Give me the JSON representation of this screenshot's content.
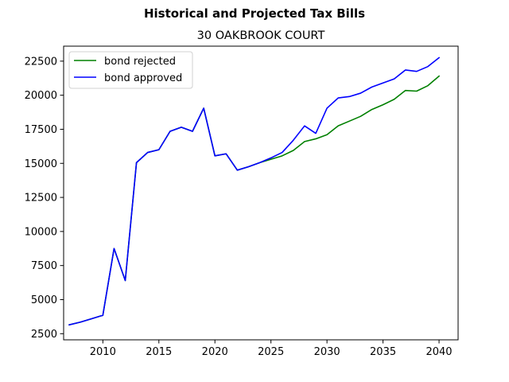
{
  "chart_data": {
    "type": "line",
    "title": "Historical and Projected Tax Bills",
    "subtitle": "30 OAKBROOK COURT",
    "xlabel": "",
    "ylabel": "",
    "xlim": [
      2006.5,
      2041.7
    ],
    "ylim": [
      2050,
      23600
    ],
    "xticks": [
      2010,
      2015,
      2020,
      2025,
      2030,
      2035,
      2040
    ],
    "yticks": [
      2500,
      5000,
      7500,
      10000,
      12500,
      15000,
      17500,
      20000,
      22500
    ],
    "grid": false,
    "legend": "top-left",
    "x": [
      2007,
      2008,
      2009,
      2010,
      2011,
      2012,
      2013,
      2014,
      2015,
      2016,
      2017,
      2018,
      2019,
      2020,
      2021,
      2022,
      2023,
      2024,
      2025,
      2026,
      2027,
      2028,
      2029,
      2030,
      2031,
      2032,
      2033,
      2034,
      2035,
      2036,
      2037,
      2038,
      2039,
      2040
    ],
    "series": [
      {
        "name": "bond rejected",
        "color": "#008000",
        "values": [
          3150,
          3350,
          3600,
          3850,
          8750,
          6400,
          15050,
          15800,
          16000,
          17350,
          17650,
          17350,
          19050,
          15550,
          15700,
          14500,
          14750,
          15050,
          15300,
          15550,
          15950,
          16600,
          16800,
          17100,
          17750,
          18100,
          18450,
          18950,
          19300,
          19700,
          20350,
          20300,
          20700,
          21400
        ]
      },
      {
        "name": "bond approved",
        "color": "#0000ff",
        "values": [
          3150,
          3350,
          3600,
          3850,
          8750,
          6400,
          15050,
          15800,
          16000,
          17350,
          17650,
          17350,
          19050,
          15550,
          15700,
          14500,
          14750,
          15050,
          15400,
          15800,
          16700,
          17750,
          17200,
          19050,
          19800,
          19900,
          20150,
          20600,
          20900,
          21200,
          21850,
          21750,
          22100,
          22750
        ]
      }
    ]
  }
}
